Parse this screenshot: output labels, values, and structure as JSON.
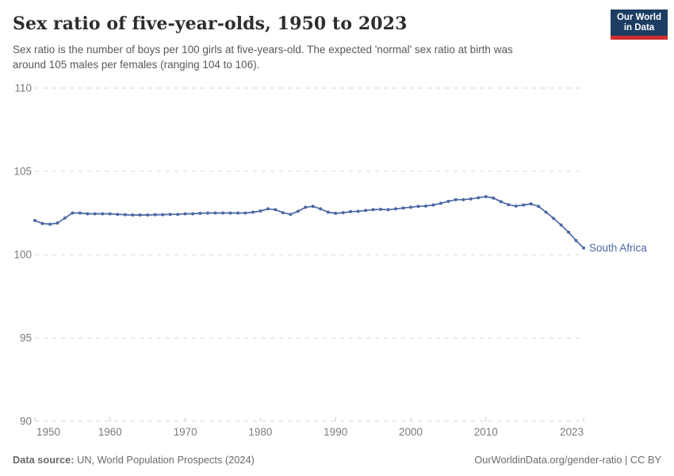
{
  "header": {
    "title": "Sex ratio of five-year-olds, 1950 to 2023",
    "subtitle_line1": "Sex ratio is the number of boys per 100 girls at five-years-old. The expected 'normal' sex ratio at birth was",
    "subtitle_line2": "around 105 males per females (ranging 104 to 106).",
    "logo": {
      "line1": "Our World",
      "line2": "in Data",
      "bg": "#1d3d63",
      "accent": "#cf2e2e"
    }
  },
  "chart_data": {
    "type": "line",
    "title": "Sex ratio of five-year-olds, 1950 to 2023",
    "xlabel": "",
    "ylabel": "",
    "xlim": [
      1950,
      2023
    ],
    "ylim": [
      90,
      110
    ],
    "x_ticks": [
      1950,
      1960,
      1970,
      1980,
      1990,
      2000,
      2010,
      2023
    ],
    "y_ticks": [
      90,
      95,
      100,
      105,
      110
    ],
    "grid": "horizontal-dashed",
    "legend_position": "end-of-line-label",
    "entity_label": "South Africa",
    "colors": {
      "grid": "#d6d6d6",
      "axis_text": "#7b7b7b",
      "tick": "#c9c9c9"
    },
    "series": [
      {
        "name": "South Africa",
        "color": "#4a68a3",
        "years": [
          1950,
          1951,
          1952,
          1953,
          1954,
          1955,
          1956,
          1957,
          1958,
          1959,
          1960,
          1961,
          1962,
          1963,
          1964,
          1965,
          1966,
          1967,
          1968,
          1969,
          1970,
          1971,
          1972,
          1973,
          1974,
          1975,
          1976,
          1977,
          1978,
          1979,
          1980,
          1981,
          1982,
          1983,
          1984,
          1985,
          1986,
          1987,
          1988,
          1989,
          1990,
          1991,
          1992,
          1993,
          1994,
          1995,
          1996,
          1997,
          1998,
          1999,
          2000,
          2001,
          2002,
          2003,
          2004,
          2005,
          2006,
          2007,
          2008,
          2009,
          2010,
          2011,
          2012,
          2013,
          2014,
          2015,
          2016,
          2017,
          2018,
          2019,
          2020,
          2021,
          2022,
          2023
        ],
        "values": [
          102.05,
          101.87,
          101.83,
          101.9,
          102.2,
          102.5,
          102.5,
          102.45,
          102.45,
          102.45,
          102.45,
          102.42,
          102.4,
          102.38,
          102.38,
          102.38,
          102.4,
          102.4,
          102.42,
          102.42,
          102.45,
          102.45,
          102.48,
          102.5,
          102.5,
          102.5,
          102.5,
          102.5,
          102.5,
          102.55,
          102.62,
          102.75,
          102.7,
          102.52,
          102.42,
          102.6,
          102.85,
          102.9,
          102.75,
          102.55,
          102.48,
          102.52,
          102.58,
          102.6,
          102.65,
          102.7,
          102.72,
          102.7,
          102.75,
          102.8,
          102.85,
          102.9,
          102.92,
          102.98,
          103.08,
          103.2,
          103.3,
          103.3,
          103.35,
          103.42,
          103.48,
          103.4,
          103.18,
          103.0,
          102.92,
          102.98,
          103.05,
          102.9,
          102.55,
          102.18,
          101.78,
          101.35,
          100.85,
          100.4
        ]
      }
    ]
  },
  "footer": {
    "source_label": "Data source:",
    "source_text": " UN, World Population Prospects (2024)",
    "credit": "OurWorldinData.org/gender-ratio | CC BY"
  }
}
